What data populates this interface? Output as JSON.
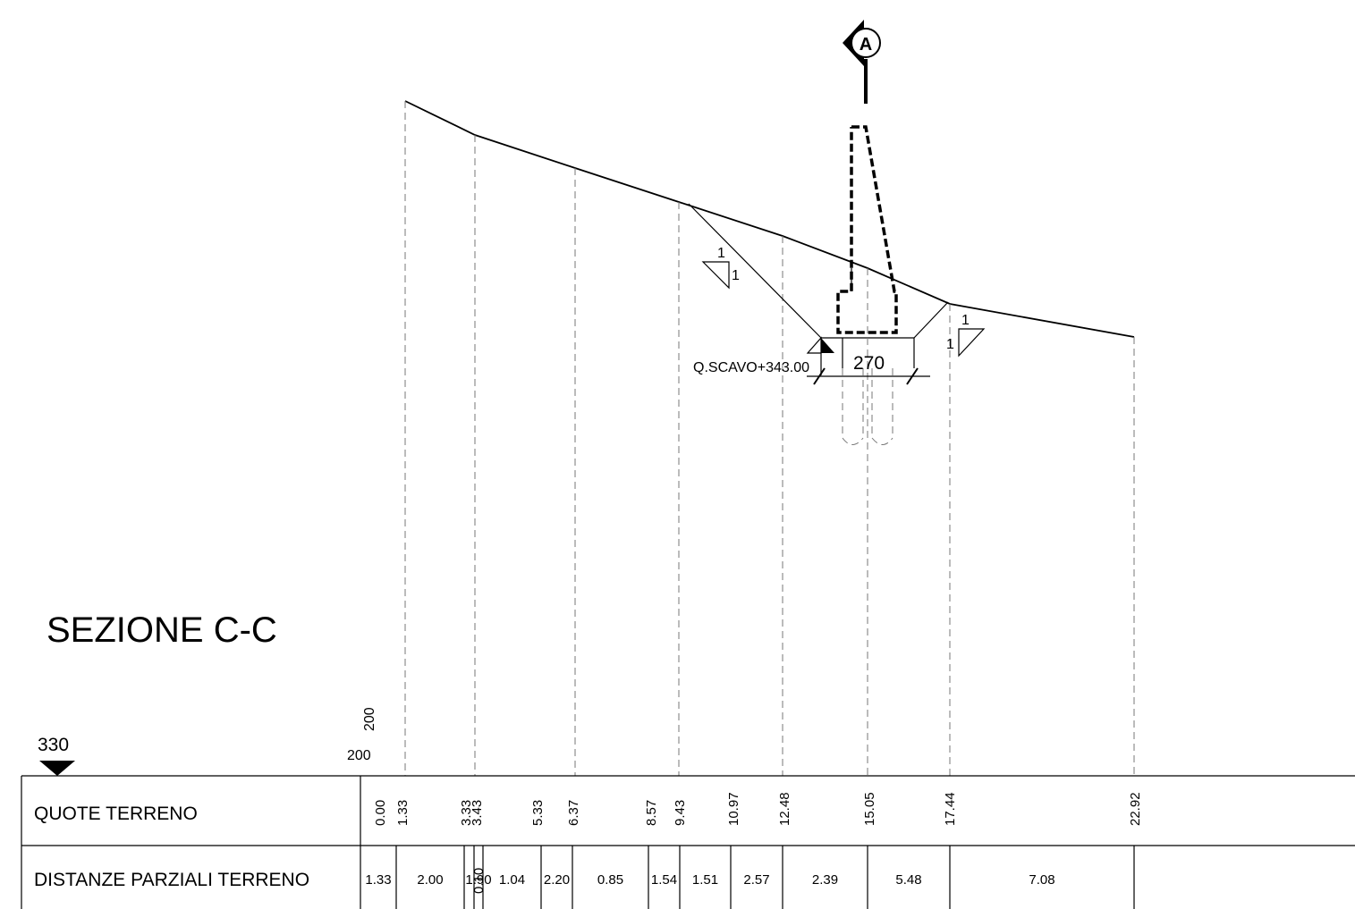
{
  "title": "SEZIONE C-C",
  "reference": {
    "elevation": "330",
    "scale_h": "200",
    "scale_v": "200"
  },
  "marker": {
    "letter": "A"
  },
  "annotations": {
    "excavation": "Q.SCAVO+343.00",
    "width": "270",
    "slope_left_top": "1",
    "slope_left_side": "1",
    "slope_right_top": "1",
    "slope_right_side": "1"
  },
  "table": {
    "row1_label": "QUOTE TERRENO",
    "row2_label": "DISTANZE PARZIALI TERRENO",
    "quote": [
      "0.00",
      "1.33",
      "3.33",
      "3.43",
      "5.33",
      "6.37",
      "8.57",
      "9.43",
      "10.97",
      "12.48",
      "15.05",
      "17.44",
      "22.92"
    ],
    "distanze": [
      "1.33",
      "2.00",
      "0.10",
      "1.90",
      "1.04",
      "2.20",
      "0.85",
      "1.54",
      "1.51",
      "2.57",
      "2.39",
      "5.48",
      "7.08"
    ]
  }
}
